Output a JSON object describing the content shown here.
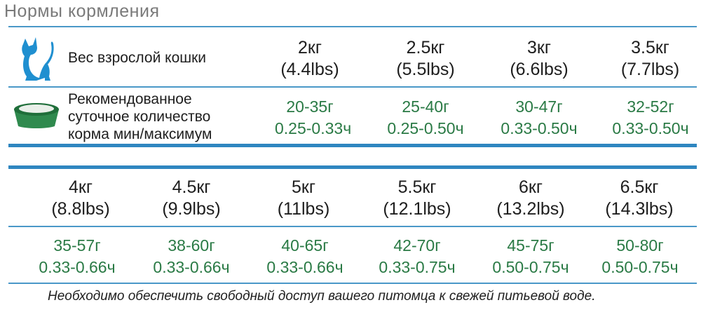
{
  "title": "Нормы кормления",
  "row1": {
    "weight_label": "Вес взрослой кошки",
    "food_label": [
      "Рекомендованное",
      "суточное количество",
      "корма мин/максимум"
    ],
    "weights": [
      {
        "kg": "2кг",
        "lbs": "(4.4lbs)"
      },
      {
        "kg": "2.5кг",
        "lbs": "(5.5lbs)"
      },
      {
        "kg": "3кг",
        "lbs": "(6.6lbs)"
      },
      {
        "kg": "3.5кг",
        "lbs": "(7.7lbs)"
      }
    ],
    "food": [
      {
        "grams": "20-35г",
        "cups": "0.25-0.33ч"
      },
      {
        "grams": "25-40г",
        "cups": "0.25-0.50ч"
      },
      {
        "grams": "30-47г",
        "cups": "0.33-0.50ч"
      },
      {
        "grams": "32-52г",
        "cups": "0.33-0.50ч"
      }
    ]
  },
  "row2": {
    "weights": [
      {
        "kg": "4кг",
        "lbs": "(8.8lbs)"
      },
      {
        "kg": "4.5кг",
        "lbs": "(9.9lbs)"
      },
      {
        "kg": "5кг",
        "lbs": "(11lbs)"
      },
      {
        "kg": "5.5кг",
        "lbs": "(12.1lbs)"
      },
      {
        "kg": "6кг",
        "lbs": "(13.2lbs)"
      },
      {
        "kg": "6.5кг",
        "lbs": "(14.3lbs)"
      }
    ],
    "food": [
      {
        "grams": "35-57г",
        "cups": "0.33-0.66ч"
      },
      {
        "grams": "38-60г",
        "cups": "0.33-0.66ч"
      },
      {
        "grams": "40-65г",
        "cups": "0.33-0.66ч"
      },
      {
        "grams": "42-70г",
        "cups": "0.33-0.75ч"
      },
      {
        "grams": "45-75г",
        "cups": "0.50-0.75ч"
      },
      {
        "grams": "50-80г",
        "cups": "0.50-0.75ч"
      }
    ]
  },
  "footer": "Необходимо обеспечить свободный доступ  вашего питомца к свежей питьевой воде.",
  "colors": {
    "rule": "#2f86c0",
    "food_text": "#2a7a45",
    "cat_icon": "#1f8fd0",
    "bowl_icon": "#2f8a4e"
  },
  "icons": [
    "cat-icon",
    "food-bowl-icon"
  ]
}
